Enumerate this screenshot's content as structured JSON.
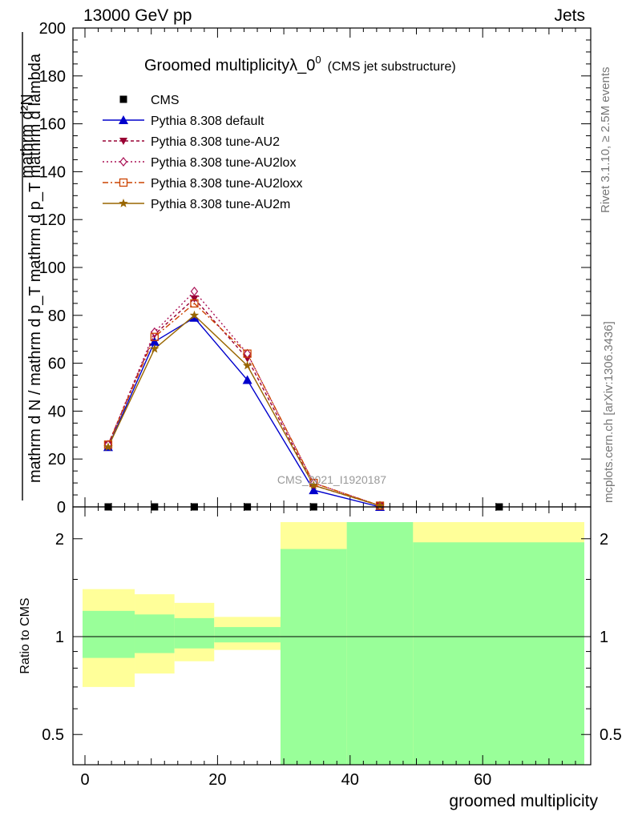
{
  "header": {
    "left": "13000 GeV pp",
    "right": "Jets"
  },
  "side_text": {
    "rivet": "Rivet 3.1.10, ≥ 2.5M events",
    "mcplots": "mcplots.cern.ch [arXiv:1306.3436]"
  },
  "watermark": "CMS_2021_I1920187",
  "chart_data": [
    {
      "type": "line",
      "title": "Groomed multiplicityλ_0",
      "title_sup": "0",
      "subtitle": "(CMS jet substructure)",
      "ylabel_numerator": "mathrm d²N",
      "ylabel_denominator": "mathrm d N / mathrm d p_T mathrm d p_T mathrm d lambda",
      "ylim": [
        0,
        200
      ],
      "xlim": [
        -3,
        76
      ],
      "yticks": [
        "0",
        "20",
        "40",
        "60",
        "80",
        "100",
        "120",
        "140",
        "160",
        "180",
        "200"
      ],
      "legend_placement": "top-left",
      "series": [
        {
          "name": "CMS",
          "color": "#000000",
          "marker": "square",
          "dash": "none",
          "x": [
            3.5,
            10.5,
            16.5,
            24.5,
            34.5,
            62.5
          ],
          "y": [
            0,
            0,
            0,
            0,
            0,
            0
          ]
        },
        {
          "name": "Pythia 8.308 default",
          "color": "#0000cc",
          "marker": "triangle-up",
          "dash": "solid",
          "x": [
            3.5,
            10.5,
            16.5,
            24.5,
            34.5,
            44.5
          ],
          "y": [
            25,
            69,
            79,
            53,
            7,
            0
          ]
        },
        {
          "name": "Pythia 8.308 tune-AU2",
          "color": "#990033",
          "marker": "triangle-down",
          "dash": "4,3",
          "x": [
            3.5,
            10.5,
            16.5,
            24.5,
            34.5,
            44.5
          ],
          "y": [
            26,
            72,
            87,
            62,
            9,
            0.5
          ]
        },
        {
          "name": "Pythia 8.308 tune-AU2lox",
          "color": "#aa1155",
          "marker": "diamond",
          "dash": "2,3",
          "x": [
            3.5,
            10.5,
            16.5,
            24.5,
            34.5,
            44.5
          ],
          "y": [
            26,
            73,
            90,
            64,
            10,
            0.5
          ]
        },
        {
          "name": "Pythia 8.308 tune-AU2loxx",
          "color": "#cc4400",
          "marker": "square-open",
          "dash": "7,3,2,3",
          "x": [
            3.5,
            10.5,
            16.5,
            24.5,
            34.5,
            44.5
          ],
          "y": [
            26,
            71,
            85,
            64,
            10,
            0.5
          ]
        },
        {
          "name": "Pythia 8.308 tune-AU2m",
          "color": "#996600",
          "marker": "star",
          "dash": "solid",
          "x": [
            3.5,
            10.5,
            16.5,
            24.5,
            34.5,
            44.5
          ],
          "y": [
            25,
            66,
            80,
            59,
            9,
            0.5
          ]
        }
      ]
    },
    {
      "type": "area",
      "ylabel": "Ratio to CMS",
      "xlabel": "groomed multiplicity",
      "ylim": [
        0.4,
        2.25
      ],
      "log_y": true,
      "xticks": [
        "0",
        "20",
        "40",
        "60"
      ],
      "yticks": [
        "0.5",
        "1",
        "2"
      ],
      "reference_line": 1,
      "colors": {
        "inner": "#99ff99",
        "outer": "#ffff99"
      },
      "bands": [
        {
          "x": [
            -0.5,
            7.5
          ],
          "inner": [
            0.86,
            1.2
          ],
          "outer": [
            0.7,
            1.4
          ]
        },
        {
          "x": [
            7.5,
            13.5
          ],
          "inner": [
            0.89,
            1.17
          ],
          "outer": [
            0.77,
            1.35
          ]
        },
        {
          "x": [
            13.5,
            19.5
          ],
          "inner": [
            0.92,
            1.14
          ],
          "outer": [
            0.84,
            1.27
          ]
        },
        {
          "x": [
            19.5,
            29.5
          ],
          "inner": [
            0.96,
            1.07
          ],
          "outer": [
            0.91,
            1.15
          ]
        },
        {
          "x": [
            29.5,
            39.5
          ],
          "inner": [
            0.4,
            1.86
          ],
          "outer": [
            0.4,
            2.25
          ]
        },
        {
          "x": [
            39.5,
            49.5
          ],
          "inner": [
            0.4,
            2.25
          ],
          "outer": [
            0.4,
            2.25
          ]
        },
        {
          "x": [
            49.5,
            75.5
          ],
          "inner": [
            0.4,
            1.95
          ],
          "outer": [
            0.4,
            2.25
          ]
        }
      ]
    }
  ]
}
